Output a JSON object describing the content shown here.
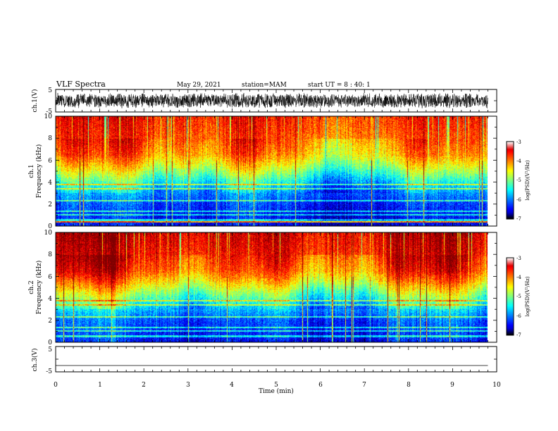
{
  "header": {
    "title": "VLF Spectra",
    "date": "May 29, 2021",
    "station": "station=MAM",
    "start": "start UT =  8 : 40: 1"
  },
  "chart_data": [
    {
      "type": "line",
      "name": "ch1-waveform",
      "ylabel": "ch.1(V)",
      "ylim": [
        -5,
        5
      ],
      "yticks": [
        "5",
        "-5"
      ],
      "description_values": {
        "amplitude_range": [
          -3.5,
          3.5
        ],
        "duration_min": 9.8
      }
    },
    {
      "type": "heatmap",
      "name": "ch1-spectrogram",
      "ylabel": "ch.1\nFrequency (kHz)",
      "ylabel_line1": "ch.1",
      "ylabel_line2": "Frequency (kHz)",
      "ylim": [
        0,
        10
      ],
      "yticks": [
        "0",
        "2",
        "4",
        "6",
        "8",
        "10"
      ],
      "xlim": [
        0,
        10
      ],
      "data_end_min": 9.8,
      "colorbar": {
        "label": "log(PSD)(V²/Hz)",
        "range": [
          -7,
          -3
        ],
        "ticks": [
          "-3",
          "-4",
          "-5",
          "-6",
          "-7"
        ]
      },
      "profile_log_psd_by_khz": [
        [
          0,
          -6.6
        ],
        [
          2,
          -6.3
        ],
        [
          3.5,
          -5.8
        ],
        [
          4.5,
          -5.2
        ],
        [
          5.5,
          -4.6
        ],
        [
          6.5,
          -4.1
        ],
        [
          8,
          -3.8
        ],
        [
          10,
          -3.6
        ]
      ]
    },
    {
      "type": "heatmap",
      "name": "ch2-spectrogram",
      "ylabel_line1": "ch.2",
      "ylabel_line2": "Frequency (kHz)",
      "ylim": [
        0,
        10
      ],
      "yticks": [
        "0",
        "2",
        "4",
        "6",
        "8",
        "10"
      ],
      "xlim": [
        0,
        10
      ],
      "data_end_min": 9.8,
      "colorbar": {
        "label": "log(PSD)(V²/Hz)",
        "range": [
          -7,
          -3
        ],
        "ticks": [
          "-3",
          "-4",
          "-5",
          "-6",
          "-7"
        ]
      },
      "profile_log_psd_by_khz": [
        [
          0,
          -6.5
        ],
        [
          2,
          -6.2
        ],
        [
          3.5,
          -5.5
        ],
        [
          4.5,
          -4.9
        ],
        [
          5.5,
          -4.3
        ],
        [
          6.5,
          -3.8
        ],
        [
          8,
          -3.5
        ],
        [
          10,
          -3.3
        ]
      ]
    },
    {
      "type": "line",
      "name": "ch3-waveform",
      "ylabel": "ch.3(V)",
      "ylim": [
        -5,
        5
      ],
      "yticks": [
        "5",
        "-5"
      ],
      "series": [
        {
          "x": [
            0,
            9.8
          ],
          "y": [
            -2.5,
            -2.5
          ]
        }
      ]
    }
  ],
  "xaxis": {
    "label": "Time (min)",
    "ticks": [
      "0",
      "1",
      "2",
      "3",
      "4",
      "5",
      "6",
      "7",
      "8",
      "9",
      "10"
    ]
  }
}
